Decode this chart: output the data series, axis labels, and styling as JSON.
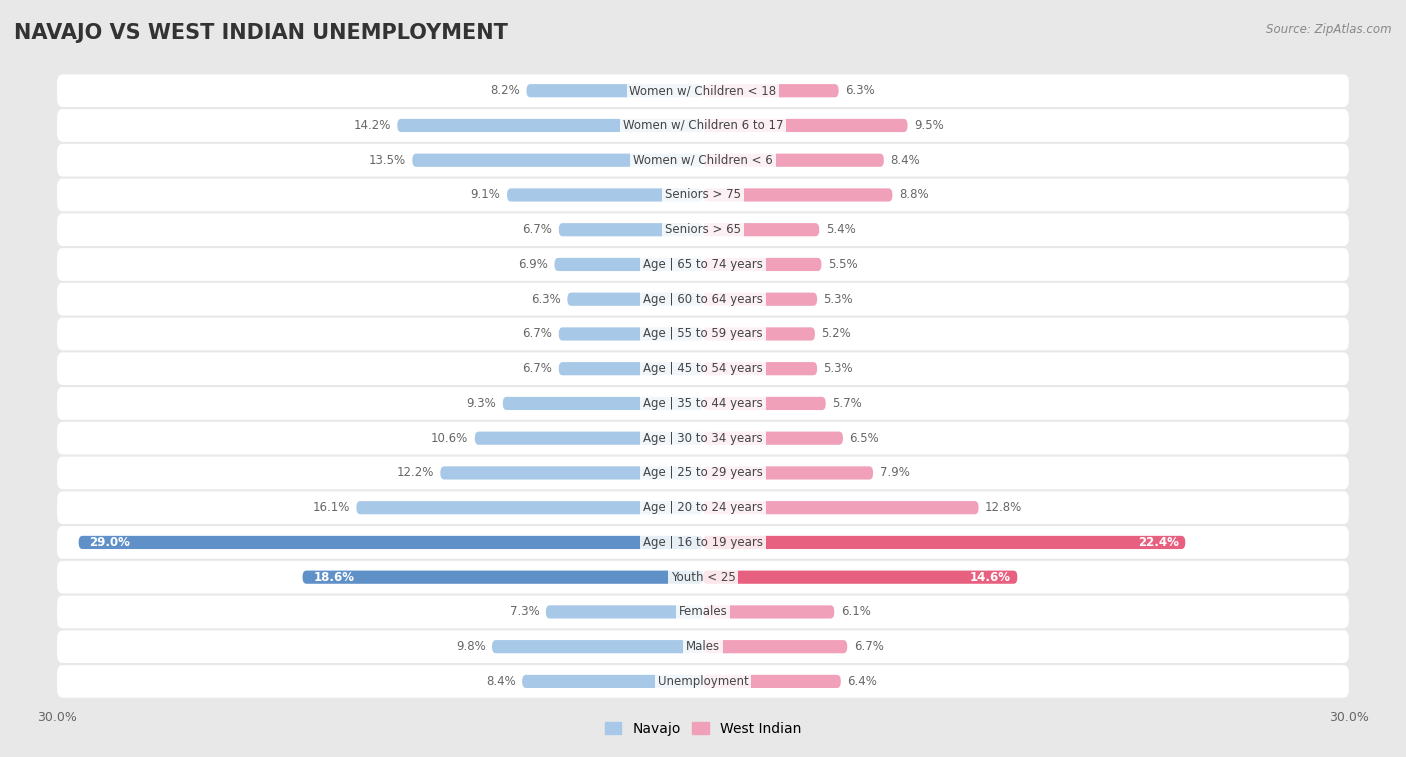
{
  "title": "NAVAJO VS WEST INDIAN UNEMPLOYMENT",
  "source": "Source: ZipAtlas.com",
  "categories": [
    "Unemployment",
    "Males",
    "Females",
    "Youth < 25",
    "Age | 16 to 19 years",
    "Age | 20 to 24 years",
    "Age | 25 to 29 years",
    "Age | 30 to 34 years",
    "Age | 35 to 44 years",
    "Age | 45 to 54 years",
    "Age | 55 to 59 years",
    "Age | 60 to 64 years",
    "Age | 65 to 74 years",
    "Seniors > 65",
    "Seniors > 75",
    "Women w/ Children < 6",
    "Women w/ Children 6 to 17",
    "Women w/ Children < 18"
  ],
  "navajo_values": [
    8.4,
    9.8,
    7.3,
    18.6,
    29.0,
    16.1,
    12.2,
    10.6,
    9.3,
    6.7,
    6.7,
    6.3,
    6.9,
    6.7,
    9.1,
    13.5,
    14.2,
    8.2
  ],
  "west_indian_values": [
    6.4,
    6.7,
    6.1,
    14.6,
    22.4,
    12.8,
    7.9,
    6.5,
    5.7,
    5.3,
    5.2,
    5.3,
    5.5,
    5.4,
    8.8,
    8.4,
    9.5,
    6.3
  ],
  "navajo_color": "#a8c8e8",
  "west_indian_color": "#f0a0b8",
  "navajo_highlight_color": "#6090c8",
  "west_indian_highlight_color": "#e86080",
  "axis_max": 30.0,
  "bg_color": "#f0f0f0",
  "row_bg_color": "#ffffff",
  "row_alt_bg_color": "#f0f0f0",
  "legend_navajo": "Navajo",
  "legend_west_indian": "West Indian",
  "title_fontsize": 15,
  "label_fontsize": 8.5,
  "value_fontsize": 8.5
}
